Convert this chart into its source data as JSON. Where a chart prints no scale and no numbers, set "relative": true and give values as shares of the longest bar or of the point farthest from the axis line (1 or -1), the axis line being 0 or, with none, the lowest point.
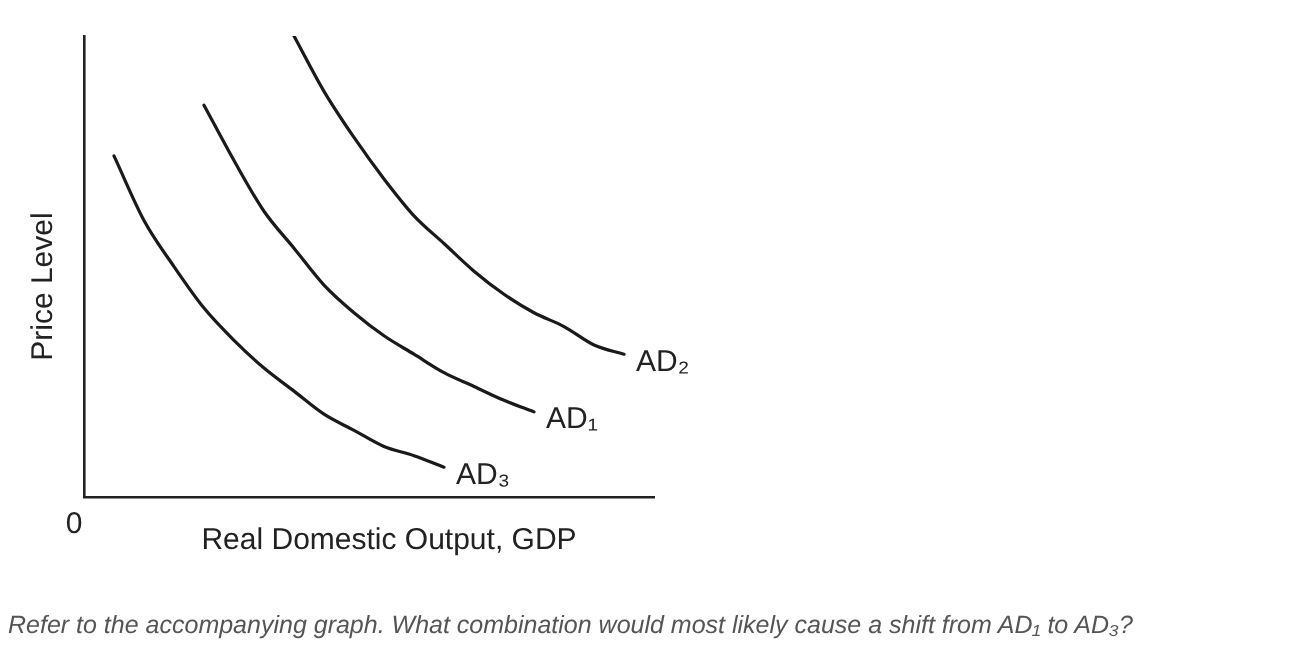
{
  "chart_data": {
    "type": "line",
    "relative": true,
    "xlabel": "Real Domestic Output, GDP",
    "ylabel": "Price Level",
    "categories": [
      null,
      null,
      null,
      null,
      null,
      null,
      null,
      null,
      null,
      null,
      null,
      null,
      null,
      null,
      null,
      null,
      null,
      null,
      null,
      null
    ],
    "series": [
      {
        "name": "AD₂",
        "color": "#1a1a1a",
        "values": [
          null,
          null,
          null,
          null,
          null,
          null,
          null,
          1.0,
          0.88,
          0.78,
          0.69,
          0.61,
          0.55,
          0.49,
          0.44,
          0.4,
          0.37,
          0.33,
          0.31,
          null
        ]
      },
      {
        "name": "AD₁",
        "color": "#1a1a1a",
        "values": [
          null,
          null,
          null,
          null,
          0.85,
          0.73,
          0.62,
          0.54,
          0.46,
          0.4,
          0.35,
          0.31,
          0.27,
          0.24,
          0.21,
          0.185,
          null,
          null,
          null,
          null
        ]
      },
      {
        "name": "AD₃",
        "color": "#1a1a1a",
        "values": [
          null,
          0.74,
          0.6,
          0.5,
          0.41,
          0.34,
          0.28,
          0.23,
          0.18,
          0.145,
          0.11,
          0.09,
          0.065,
          null,
          null,
          null,
          null,
          null,
          null,
          null
        ]
      }
    ],
    "annotations": [
      "0",
      "Refer to the accompanying graph. What combination would most likely cause a shift from AD₁ to AD₃?"
    ],
    "grid": false,
    "legend": false,
    "marker": "none",
    "line_style": "solid"
  }
}
